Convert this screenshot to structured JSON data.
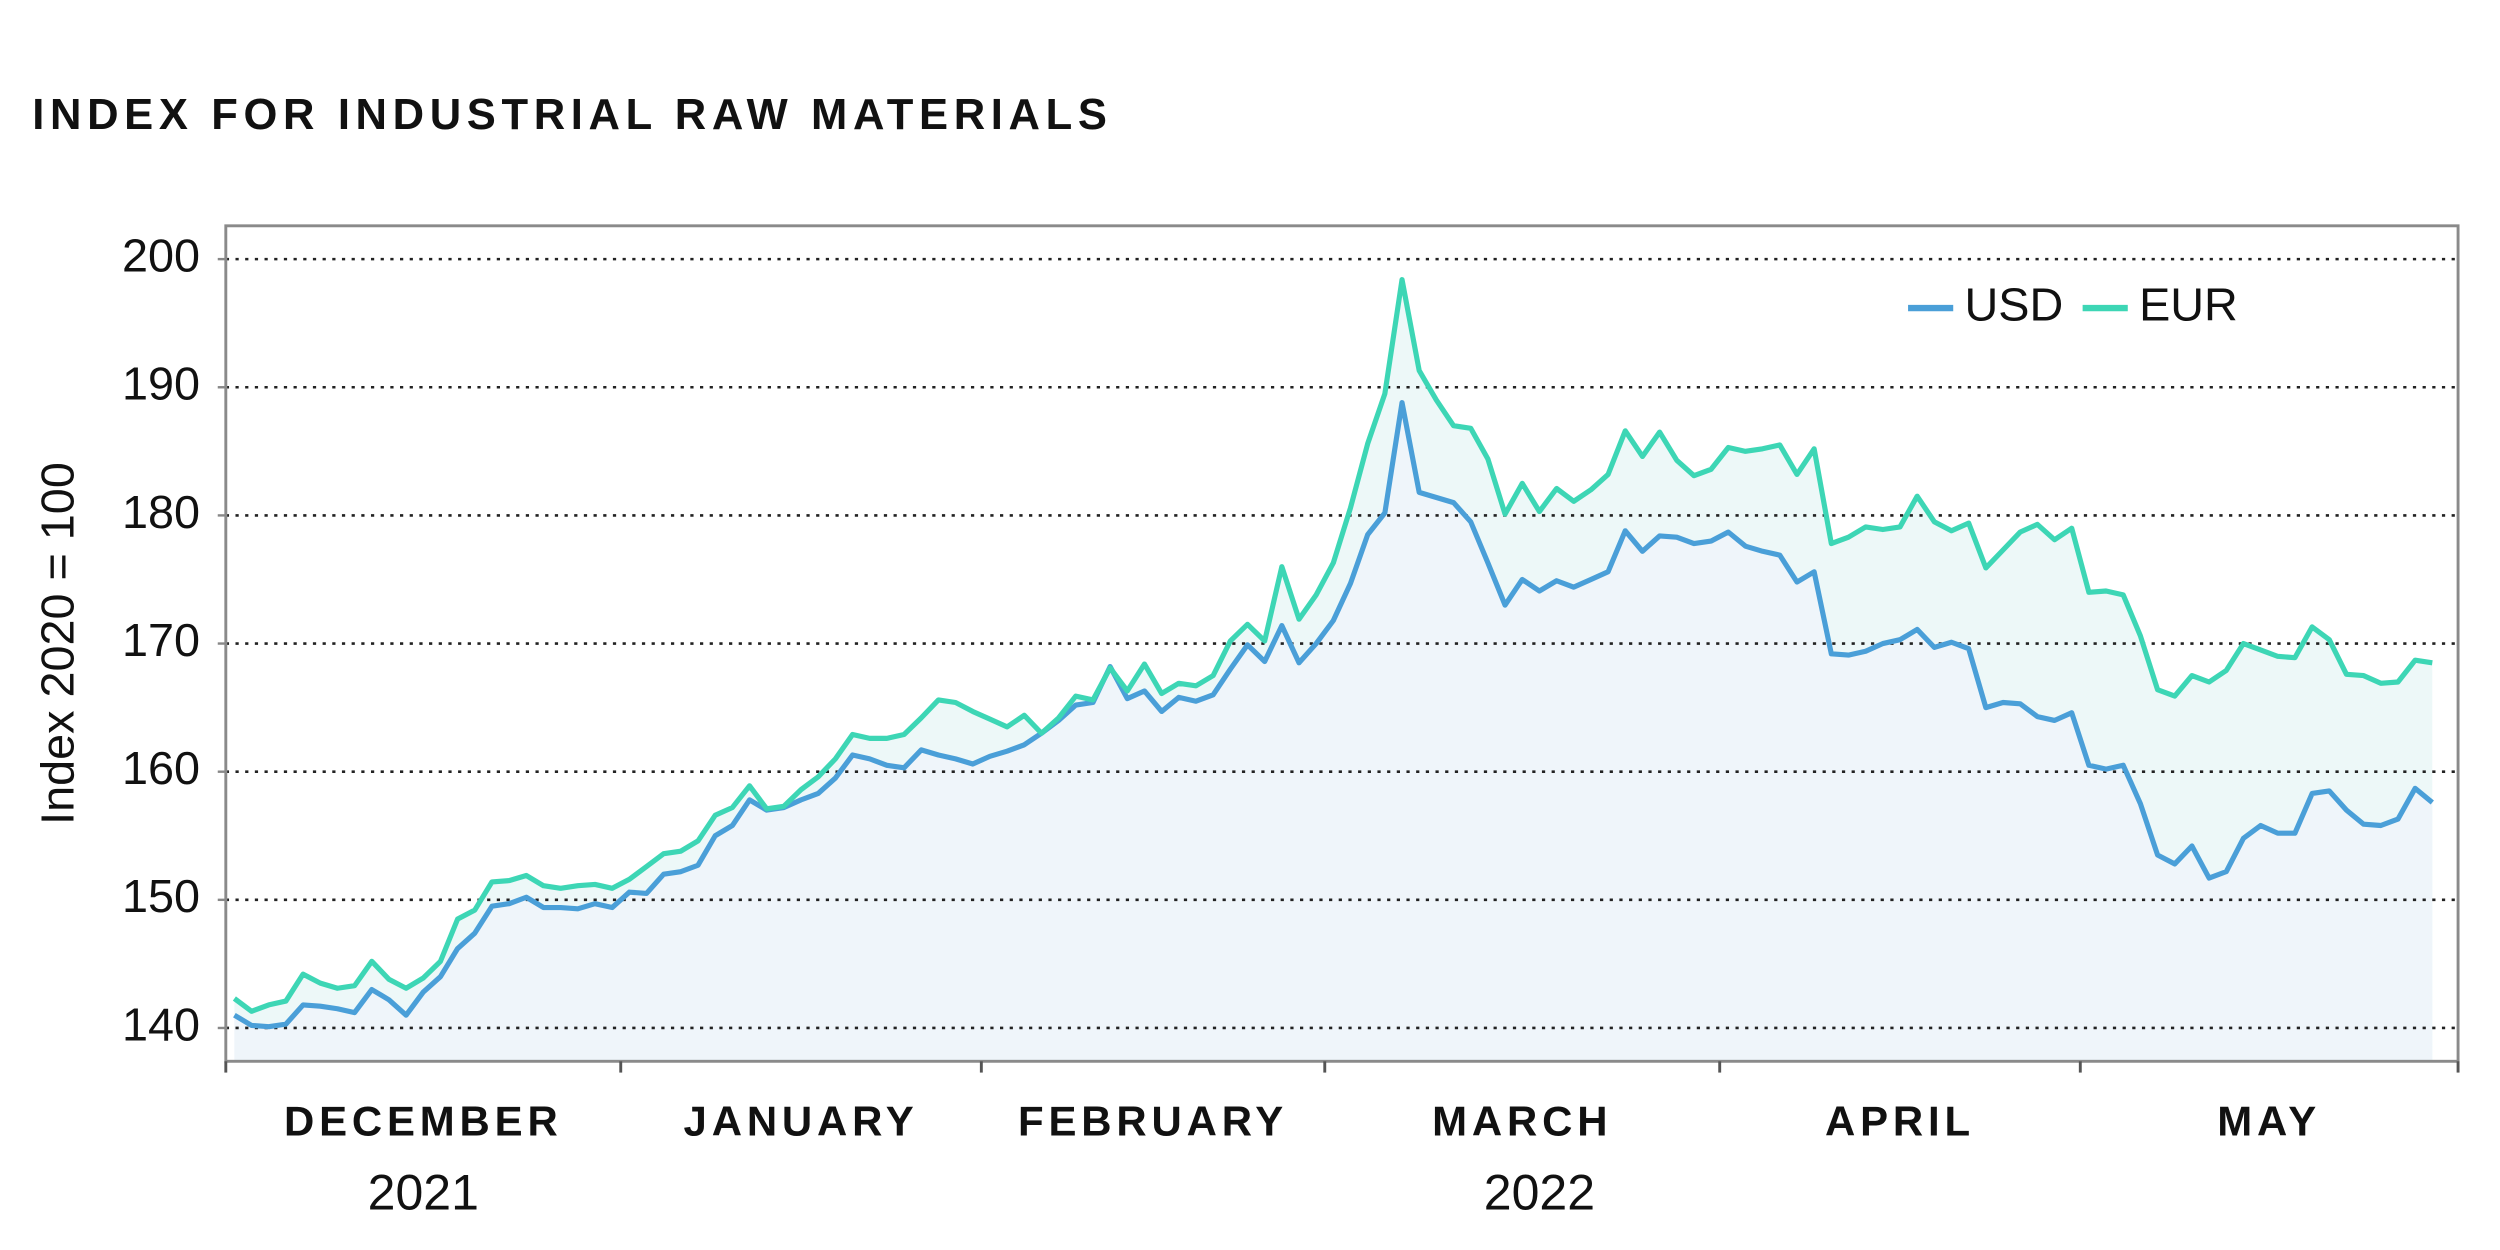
{
  "chart_data": {
    "type": "line",
    "title": "INDEX FOR INDUSTRIAL RAW MATERIALS",
    "y_label": "Index 2020 = 100",
    "months": [
      "DECEMBER",
      "JANUARY",
      "FEBRUARY",
      "MARCH",
      "APRIL",
      "MAY"
    ],
    "years": [
      "2021",
      "2022"
    ],
    "xlim": [
      0,
      130
    ],
    "xticks": [
      0,
      23,
      44,
      64,
      87,
      108,
      130
    ],
    "ylim": [
      137.4,
      202.6
    ],
    "yticks": [
      140,
      150,
      160,
      170,
      180,
      190,
      200
    ],
    "grid": true,
    "legend": "upper right",
    "series": [
      {
        "name": "USD",
        "color": "#4a9fd8",
        "fill": "#eff5fa",
        "values": [
          141,
          140.2,
          140.1,
          140.3,
          141.8,
          141.7,
          141.5,
          141.2,
          143,
          142.2,
          141,
          142.8,
          144,
          146.2,
          147.4,
          149.5,
          149.7,
          150.2,
          149.4,
          149.4,
          149.3,
          149.7,
          149.4,
          150.6,
          150.5,
          152,
          152.2,
          152.7,
          155,
          155.8,
          157.8,
          157,
          157.2,
          157.8,
          158.3,
          159.5,
          161.3,
          161,
          160.5,
          160.3,
          161.7,
          161.3,
          161,
          160.6,
          161.2,
          161.6,
          162.1,
          163,
          164,
          165.2,
          165.4,
          168.2,
          165.7,
          166.3,
          164.7,
          165.8,
          165.5,
          166,
          168,
          169.9,
          168.6,
          171.4,
          168.5,
          170,
          171.8,
          174.7,
          178.5,
          180.2,
          188.8,
          181.8,
          181.4,
          181,
          179.5,
          176.3,
          173,
          175,
          174.1,
          174.9,
          174.4,
          175,
          175.6,
          178.8,
          177.2,
          178.4,
          178.3,
          177.8,
          178,
          178.7,
          177.6,
          177.2,
          176.9,
          174.8,
          175.6,
          169.2,
          169.1,
          169.4,
          170,
          170.3,
          171.1,
          169.7,
          170.1,
          169.6,
          165,
          165.4,
          165.3,
          164.3,
          164,
          164.6,
          160.5,
          160.2,
          160.5,
          157.5,
          153.5,
          152.8,
          154.2,
          151.7,
          152.2,
          154.8,
          155.8,
          155.2,
          155.2,
          158.3,
          158.5,
          157,
          155.9,
          155.8,
          156.3,
          158.7,
          157.6
        ]
      },
      {
        "name": "EUR",
        "color": "#3dd6b5",
        "fill": "#edf8f8",
        "values": [
          142.3,
          141.3,
          141.8,
          142.1,
          144.2,
          143.5,
          143.1,
          143.3,
          145.2,
          143.8,
          143.1,
          143.9,
          145.2,
          148.5,
          149.2,
          151.4,
          151.5,
          151.9,
          151.1,
          150.9,
          151.1,
          151.2,
          150.9,
          151.6,
          152.6,
          153.6,
          153.8,
          154.6,
          156.6,
          157.2,
          158.9,
          157.1,
          157.3,
          158.6,
          159.6,
          161,
          162.9,
          162.6,
          162.6,
          162.9,
          164.2,
          165.6,
          165.4,
          164.7,
          164.1,
          163.5,
          164.4,
          163,
          164.2,
          165.9,
          165.6,
          168.1,
          166.3,
          168.4,
          166.1,
          166.9,
          166.7,
          167.5,
          170.2,
          171.5,
          170.2,
          176,
          171.9,
          173.8,
          176.3,
          180.6,
          185.6,
          189.5,
          198.4,
          191.3,
          189,
          187,
          186.8,
          184.4,
          180.1,
          182.5,
          180.3,
          182.1,
          181.1,
          182,
          183.2,
          186.6,
          184.6,
          186.5,
          184.3,
          183.1,
          183.6,
          185.3,
          185,
          185.2,
          185.5,
          183.2,
          185.2,
          177.8,
          178.3,
          179.1,
          178.9,
          179.1,
          181.5,
          179.5,
          178.8,
          179.4,
          175.9,
          177.3,
          178.7,
          179.3,
          178.1,
          179,
          174,
          174.1,
          173.8,
          170.6,
          166.4,
          165.9,
          167.5,
          167,
          167.9,
          170,
          169.5,
          169,
          168.9,
          171.3,
          170.3,
          167.6,
          167.5,
          166.9,
          167,
          168.7,
          168.5
        ]
      }
    ]
  }
}
